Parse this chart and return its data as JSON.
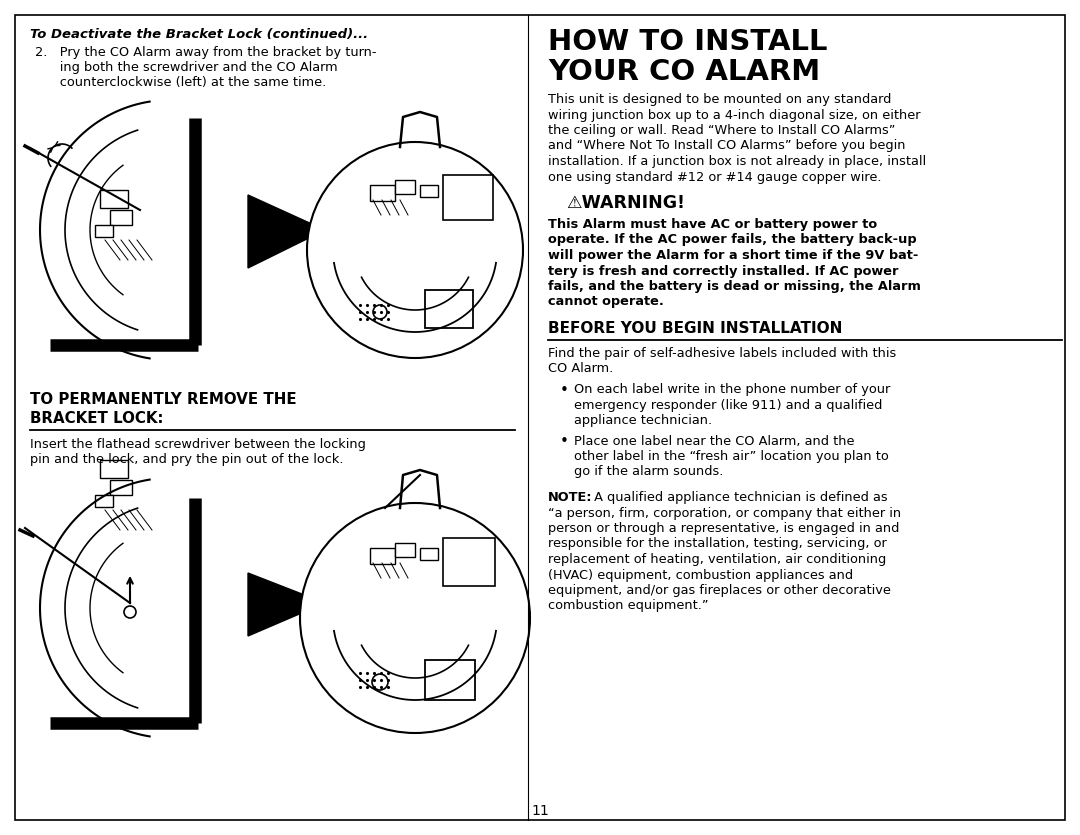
{
  "bg_color": "#ffffff",
  "page_number": "11",
  "left_column": {
    "section1_italic_bold_title": "To Deactivate the Bracket Lock (continued)...",
    "step2_lines": [
      "2.   Pry the CO Alarm away from the bracket by turn-",
      "      ing both the screwdriver and the CO Alarm",
      "      counterclockwise (left) at the same time."
    ],
    "section2_title_line1": "TO PERMANENTLY REMOVE THE",
    "section2_title_line2": "BRACKET LOCK:",
    "section2_body_lines": [
      "Insert the flathead screwdriver between the locking",
      "pin and the lock, and pry the pin out of the lock."
    ]
  },
  "right_column": {
    "main_title_line1": "HOW TO INSTALL",
    "main_title_line2": "YOUR CO ALARM",
    "intro_lines": [
      "This unit is designed to be mounted on any standard",
      "wiring junction box up to a 4-inch diagonal size, on either",
      "the ceiling or wall. Read “Where to Install CO Alarms”",
      "and “Where Not To Install CO Alarms” before you begin",
      "installation. If a junction box is not already in place, install",
      "one using standard #12 or #14 gauge copper wire."
    ],
    "warning_title": "⚠WARNING!",
    "warning_lines": [
      "This Alarm must have AC or battery power to",
      "operate. If the AC power fails, the battery back-up",
      "will power the Alarm for a short time if the 9V bat-",
      "tery is fresh and correctly installed. If AC power",
      "fails, and the battery is dead or missing, the Alarm",
      "cannot operate."
    ],
    "before_title": "BEFORE YOU BEGIN INSTALLATION",
    "before_body1": "Find the pair of self-adhesive labels included with this",
    "before_body2": "CO Alarm.",
    "bullet1_lines": [
      "On each label write in the phone number of your",
      "emergency responder (like 911) and a qualified",
      "appliance technician."
    ],
    "bullet2_lines": [
      "Place one label near the CO Alarm, and the",
      "other label in the “fresh air” location you plan to",
      "go if the alarm sounds."
    ],
    "note_lines": [
      "NOTE: A qualified appliance technician is defined as",
      "“a person, firm, corporation, or company that either in",
      "person or through a representative, is engaged in and",
      "responsible for the installation, testing, servicing, or",
      "replacement of heating, ventilation, air conditioning",
      "(HVAC) equipment, combustion appliances and",
      "equipment, and/or gas fireplaces or other decorative",
      "combustion equipment.”"
    ]
  }
}
